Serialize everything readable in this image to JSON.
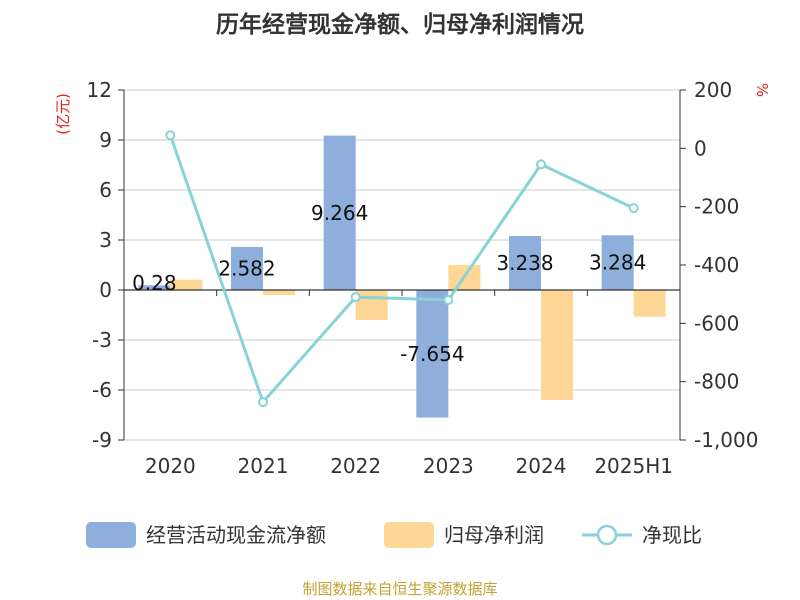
{
  "chart_data": {
    "type": "bar",
    "title": "历年经营现金净额、归母净利润情况",
    "categories": [
      "2020",
      "2021",
      "2022",
      "2023",
      "2024",
      "2025H1"
    ],
    "y_left": {
      "unit": "(亿元)",
      "range": [
        -9,
        12
      ],
      "ticks": [
        "12",
        "9",
        "6",
        "3",
        "0",
        "-3",
        "-6",
        "-9"
      ]
    },
    "y_right": {
      "unit": "%",
      "range": [
        -1000,
        200
      ],
      "ticks": [
        "200",
        "0",
        "-200",
        "-400",
        "-600",
        "-800",
        "-1,000"
      ]
    },
    "series": [
      {
        "name": "经营活动现金流净额",
        "kind": "bar",
        "axis": "left",
        "color": "#8eaedc",
        "values": [
          0.28,
          2.582,
          9.264,
          -7.654,
          3.238,
          3.284
        ],
        "labels": [
          "0.28",
          "2.582",
          "9.264",
          "-7.654",
          "3.238",
          "3.284"
        ]
      },
      {
        "name": "归母净利润",
        "kind": "bar",
        "axis": "left",
        "color": "#fed796",
        "values": [
          0.62,
          -0.3,
          -1.8,
          1.5,
          -6.6,
          -1.6
        ]
      },
      {
        "name": "净现比",
        "kind": "line",
        "axis": "right",
        "color": "#88d3d6",
        "values": [
          45,
          -870,
          -510,
          -520,
          -55,
          -205
        ]
      }
    ],
    "grid": true,
    "legend_position": "bottom"
  },
  "source": "制图数据来自恒生聚源数据库",
  "colors": {
    "left_unit": "#e0201b",
    "right_unit": "#e0201b",
    "source": "#c5a235"
  }
}
